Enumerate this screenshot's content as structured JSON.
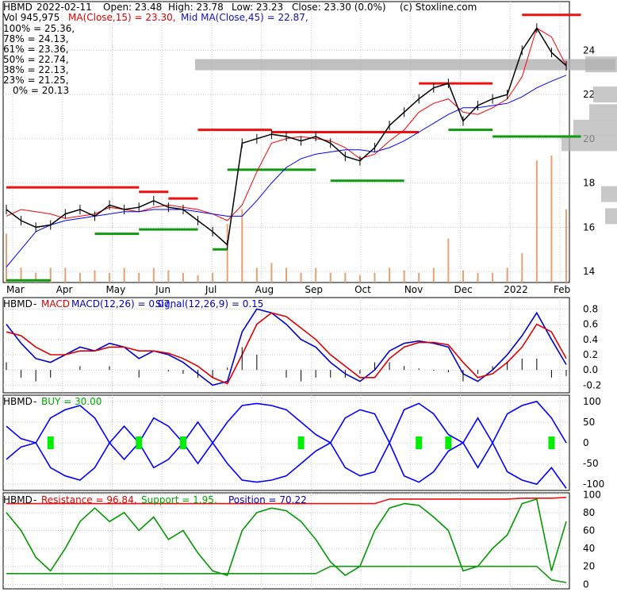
{
  "colors": {
    "bg": "#ffffff",
    "grid": "#c8c8c8",
    "axis": "#000000",
    "price": "#000000",
    "ma": "#ff0000",
    "midma": "#0000ff",
    "resistance": "#ee1111",
    "support": "#119911",
    "fib": "#aa22aa",
    "fib50": "#1111bb",
    "fib61": "#8888cc",
    "volume": "#e8a070",
    "profile": "#b0b0b0",
    "macd": "#0000cc",
    "signal": "#dd0000",
    "hist": "#000000",
    "buy": "#00ee00",
    "osc_up": "#009900",
    "osc_dn": "#ee0000"
  },
  "header": {
    "ticker": "HBMD",
    "date": "2022-02-11",
    "open": "Open: 23.48",
    "high": "High: 23.78",
    "low": "Low: 23.23",
    "close": "Close: 23.30 (0.0%)",
    "source": "(c) Stoxline.com",
    "vol": "Vol 945,975",
    "ma_label": "MA(Close,15) = 23.30,",
    "midma_label": "Mid MA(Close,45) = 22.87,"
  },
  "fib_levels": [
    {
      "label": "100% = 25.36,",
      "color": "#dd0000"
    },
    {
      "label": "78% = 24.13,",
      "color": "#aa22aa"
    },
    {
      "label": "61% = 23.36,",
      "color": "#8888cc"
    },
    {
      "label": "50% = 22.74,",
      "color": "#1111bb"
    },
    {
      "label": "38% = 22.13,",
      "color": "#8888cc"
    },
    {
      "label": "23% = 21.25,",
      "color": "#aa22aa"
    },
    {
      "label": "0% = 20.13",
      "color": "#00aa00"
    }
  ],
  "chart_data": [
    {
      "type": "line",
      "panel": "price",
      "x_ticks": [
        "Mar",
        "Apr",
        "May",
        "Jun",
        "Jul",
        "Aug",
        "Sep",
        "Oct",
        "Nov",
        "Dec",
        "2022",
        "Feb"
      ],
      "y_ticks": [
        "14",
        "16",
        "18",
        "20",
        "22",
        "24"
      ],
      "ylim": [
        13.5,
        26.2
      ],
      "series": [
        {
          "name": "MA(Close,15)",
          "values": [
            16.5,
            16.8,
            16.7,
            16.6,
            16.4,
            16.5,
            16.6,
            16.9,
            16.8,
            16.7,
            16.9,
            17.0,
            16.9,
            16.8,
            16.6,
            16.3,
            17.0,
            18.5,
            19.8,
            20.0,
            20.1,
            20.0,
            19.9,
            19.6,
            19.1,
            19.3,
            19.9,
            20.4,
            21.2,
            21.6,
            21.8,
            21.2,
            21.1,
            21.4,
            21.8,
            22.8,
            25.0,
            24.6,
            23.3
          ]
        },
        {
          "name": "MA(Close,45)",
          "values": [
            14.2,
            15.0,
            15.8,
            16.1,
            16.3,
            16.4,
            16.5,
            16.6,
            16.7,
            16.7,
            16.8,
            16.8,
            16.8,
            16.7,
            16.6,
            16.5,
            16.5,
            17.2,
            18.0,
            18.7,
            19.1,
            19.3,
            19.4,
            19.5,
            19.5,
            19.4,
            19.6,
            19.9,
            20.3,
            20.7,
            21.1,
            21.4,
            21.4,
            21.5,
            21.6,
            21.9,
            22.3,
            22.6,
            22.87
          ]
        },
        {
          "name": "Price",
          "values": [
            16.8,
            16.3,
            16.0,
            16.1,
            16.6,
            16.8,
            16.5,
            17.0,
            16.8,
            16.9,
            17.2,
            16.9,
            16.8,
            16.3,
            15.8,
            15.2,
            19.8,
            20.0,
            20.2,
            20.1,
            19.9,
            20.1,
            19.8,
            19.2,
            19.0,
            19.6,
            20.6,
            21.2,
            21.8,
            22.3,
            22.5,
            20.8,
            21.5,
            21.8,
            22.0,
            24.0,
            25.0,
            23.9,
            23.3
          ]
        }
      ],
      "volume": [
        1,
        0.3,
        0.2,
        0.3,
        0.3,
        0.2,
        0.25,
        0.2,
        0.3,
        0.2,
        0.3,
        0.25,
        0.2,
        0.15,
        0.2,
        1.2,
        1.5,
        0.3,
        0.4,
        0.3,
        0.2,
        0.3,
        0.2,
        0.2,
        0.15,
        0.2,
        0.3,
        0.25,
        0.2,
        0.3,
        0.9,
        0.25,
        0.2,
        0.2,
        0.3,
        0.6,
        2.5,
        2.6,
        1.5
      ],
      "resistance_levels": [
        {
          "x0": 0,
          "x1": 9,
          "y": 17.8
        },
        {
          "x0": 9,
          "x1": 11,
          "y": 17.6
        },
        {
          "x0": 11,
          "x1": 13,
          "y": 17.3
        },
        {
          "x0": 13,
          "x1": 18,
          "y": 20.4
        },
        {
          "x0": 18,
          "x1": 28,
          "y": 20.3
        },
        {
          "x0": 28,
          "x1": 33,
          "y": 22.5
        },
        {
          "x0": 35,
          "x1": 39,
          "y": 25.6
        }
      ],
      "support_levels": [
        {
          "x0": 0,
          "x1": 3,
          "y": 13.6
        },
        {
          "x0": 6,
          "x1": 9,
          "y": 15.7
        },
        {
          "x0": 9,
          "x1": 13,
          "y": 15.9
        },
        {
          "x0": 14,
          "x1": 15,
          "y": 15.0
        },
        {
          "x0": 15,
          "x1": 21,
          "y": 18.6
        },
        {
          "x0": 22,
          "x1": 27,
          "y": 18.1
        },
        {
          "x0": 30,
          "x1": 33,
          "y": 20.4
        },
        {
          "x0": 33,
          "x1": 39,
          "y": 20.1
        }
      ]
    },
    {
      "type": "line",
      "panel": "macd",
      "title": "MACD(12,26) = 0.07,",
      "signal_label": "Signal(12,26,9) = 0.15",
      "y_ticks": [
        "-0.2",
        "0.0",
        "0.2",
        "0.4",
        "0.6",
        "0.8"
      ],
      "ylim": [
        -0.3,
        0.95
      ],
      "series": [
        {
          "name": "MACD",
          "values": [
            0.6,
            0.35,
            0.15,
            0.1,
            0.2,
            0.3,
            0.25,
            0.35,
            0.3,
            0.15,
            0.25,
            0.2,
            0.1,
            -0.05,
            -0.2,
            -0.15,
            0.5,
            0.8,
            0.75,
            0.6,
            0.4,
            0.3,
            0.1,
            -0.05,
            -0.15,
            0.0,
            0.25,
            0.35,
            0.38,
            0.35,
            0.3,
            -0.05,
            -0.15,
            0.0,
            0.2,
            0.45,
            0.75,
            0.4,
            0.07
          ]
        },
        {
          "name": "Signal",
          "values": [
            0.5,
            0.45,
            0.3,
            0.2,
            0.2,
            0.25,
            0.25,
            0.3,
            0.3,
            0.25,
            0.25,
            0.22,
            0.15,
            0.05,
            -0.1,
            -0.18,
            0.2,
            0.6,
            0.75,
            0.7,
            0.55,
            0.4,
            0.2,
            0.05,
            -0.1,
            -0.1,
            0.15,
            0.3,
            0.36,
            0.36,
            0.33,
            0.1,
            -0.1,
            -0.05,
            0.1,
            0.3,
            0.6,
            0.5,
            0.15
          ]
        }
      ]
    },
    {
      "type": "line",
      "panel": "buy",
      "title": "BUY = 30.00",
      "y_ticks": [
        "-100",
        "-50",
        "0",
        "50",
        "100"
      ],
      "ylim": [
        -115,
        115
      ],
      "series": [
        {
          "name": "Upper",
          "values": [
            40,
            10,
            0,
            60,
            80,
            90,
            60,
            0,
            40,
            0,
            60,
            40,
            0,
            50,
            0,
            50,
            90,
            95,
            90,
            80,
            50,
            20,
            0,
            60,
            80,
            70,
            0,
            80,
            95,
            70,
            20,
            0,
            60,
            0,
            70,
            90,
            100,
            60,
            0
          ]
        },
        {
          "name": "Lower",
          "values": [
            -40,
            -10,
            0,
            -60,
            -80,
            -90,
            -60,
            0,
            -40,
            0,
            -60,
            -40,
            0,
            -50,
            0,
            -50,
            -90,
            -95,
            -90,
            -80,
            -50,
            -20,
            0,
            -60,
            -80,
            -70,
            0,
            -80,
            -95,
            -70,
            -20,
            0,
            -60,
            0,
            -70,
            -90,
            -100,
            -60,
            -110
          ]
        }
      ]
    },
    {
      "type": "line",
      "panel": "position",
      "title": "Resistance = 96.84,",
      "support_label": "Support = 1.95,",
      "position_label": "Position = 70.22",
      "y_ticks": [
        "0",
        "20",
        "40",
        "60",
        "80",
        "100"
      ],
      "ylim": [
        -5,
        102
      ],
      "series": [
        {
          "name": "Position",
          "values": [
            80,
            60,
            30,
            15,
            40,
            70,
            85,
            70,
            80,
            60,
            75,
            50,
            60,
            35,
            15,
            10,
            60,
            80,
            85,
            82,
            70,
            50,
            25,
            10,
            20,
            60,
            85,
            90,
            88,
            75,
            60,
            15,
            20,
            40,
            55,
            90,
            95,
            15,
            70
          ]
        },
        {
          "name": "Resistance",
          "values": [
            90,
            90,
            90,
            90,
            90,
            90,
            90,
            90,
            90,
            90,
            90,
            90,
            90,
            90,
            90,
            90,
            90,
            90,
            90,
            90,
            90,
            90,
            90,
            90,
            90,
            90,
            95,
            95,
            95,
            95,
            95,
            95,
            95,
            95,
            95,
            96,
            96,
            96,
            96.84
          ]
        },
        {
          "name": "Support",
          "values": [
            12,
            12,
            12,
            12,
            12,
            12,
            12,
            12,
            12,
            12,
            12,
            12,
            12,
            12,
            12,
            12,
            12,
            12,
            12,
            12,
            12,
            12,
            20,
            20,
            20,
            20,
            20,
            20,
            20,
            20,
            20,
            20,
            20,
            20,
            20,
            20,
            20,
            5,
            1.95
          ]
        }
      ]
    }
  ]
}
